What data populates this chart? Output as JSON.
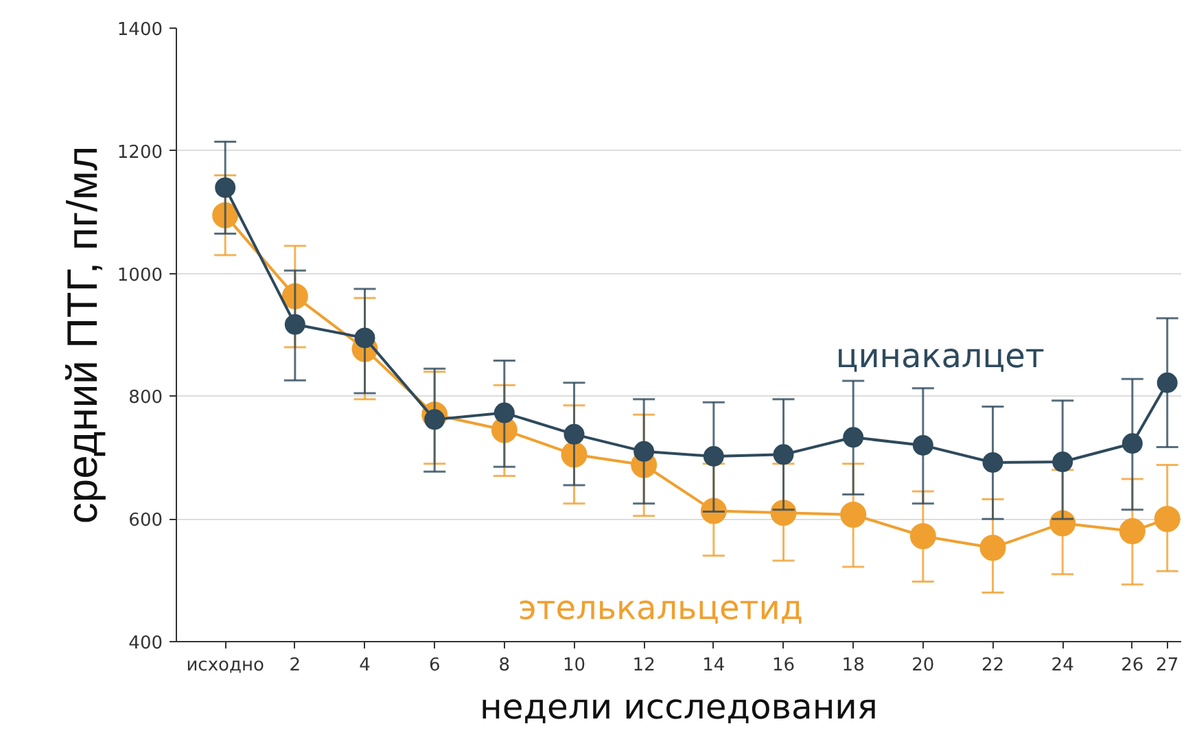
{
  "chart_data": {
    "type": "line",
    "xlabel": "недели исследования",
    "ylabel": "средний ПТГ, пг/мл",
    "x": [
      0,
      2,
      4,
      6,
      8,
      10,
      12,
      14,
      16,
      18,
      20,
      22,
      24,
      26,
      27
    ],
    "series": [
      {
        "name": "этелькальцетид",
        "color": "#f0a030",
        "values": [
          1095,
          963,
          877,
          770,
          745,
          705,
          688,
          613,
          610,
          607,
          572,
          553,
          593,
          580,
          600
        ],
        "errors": [
          [
            1030,
            1160
          ],
          [
            880,
            1045
          ],
          [
            795,
            960
          ],
          [
            690,
            840
          ],
          [
            670,
            818
          ],
          [
            625,
            785
          ],
          [
            605,
            770
          ],
          [
            540,
            690
          ],
          [
            532,
            690
          ],
          [
            522,
            690
          ],
          [
            498,
            645
          ],
          [
            480,
            632
          ],
          [
            510,
            680
          ],
          [
            493,
            665
          ],
          [
            515,
            688
          ]
        ]
      },
      {
        "name": "цинакалцет",
        "color": "#2e4a5c",
        "values": [
          1140,
          917,
          895,
          762,
          773,
          738,
          710,
          702,
          705,
          733,
          720,
          692,
          693,
          723,
          822
        ],
        "errors": [
          [
            1065,
            1215
          ],
          [
            826,
            1005
          ],
          [
            805,
            975
          ],
          [
            677,
            845
          ],
          [
            685,
            858
          ],
          [
            655,
            822
          ],
          [
            625,
            795
          ],
          [
            612,
            790
          ],
          [
            615,
            795
          ],
          [
            640,
            825
          ],
          [
            625,
            813
          ],
          [
            600,
            783
          ],
          [
            600,
            793
          ],
          [
            615,
            828
          ],
          [
            717,
            927
          ]
        ]
      }
    ],
    "xlim": [
      -1.4,
      27.4
    ],
    "ylim": [
      400,
      1400
    ],
    "xticks": [
      {
        "value": 0,
        "label": "исходно"
      },
      2,
      4,
      6,
      8,
      10,
      12,
      14,
      16,
      18,
      20,
      22,
      24,
      26,
      27
    ],
    "yticks": [
      400,
      600,
      800,
      1000,
      1200,
      1400
    ],
    "grid": "y",
    "marker": "circle",
    "line_style": "solid"
  }
}
